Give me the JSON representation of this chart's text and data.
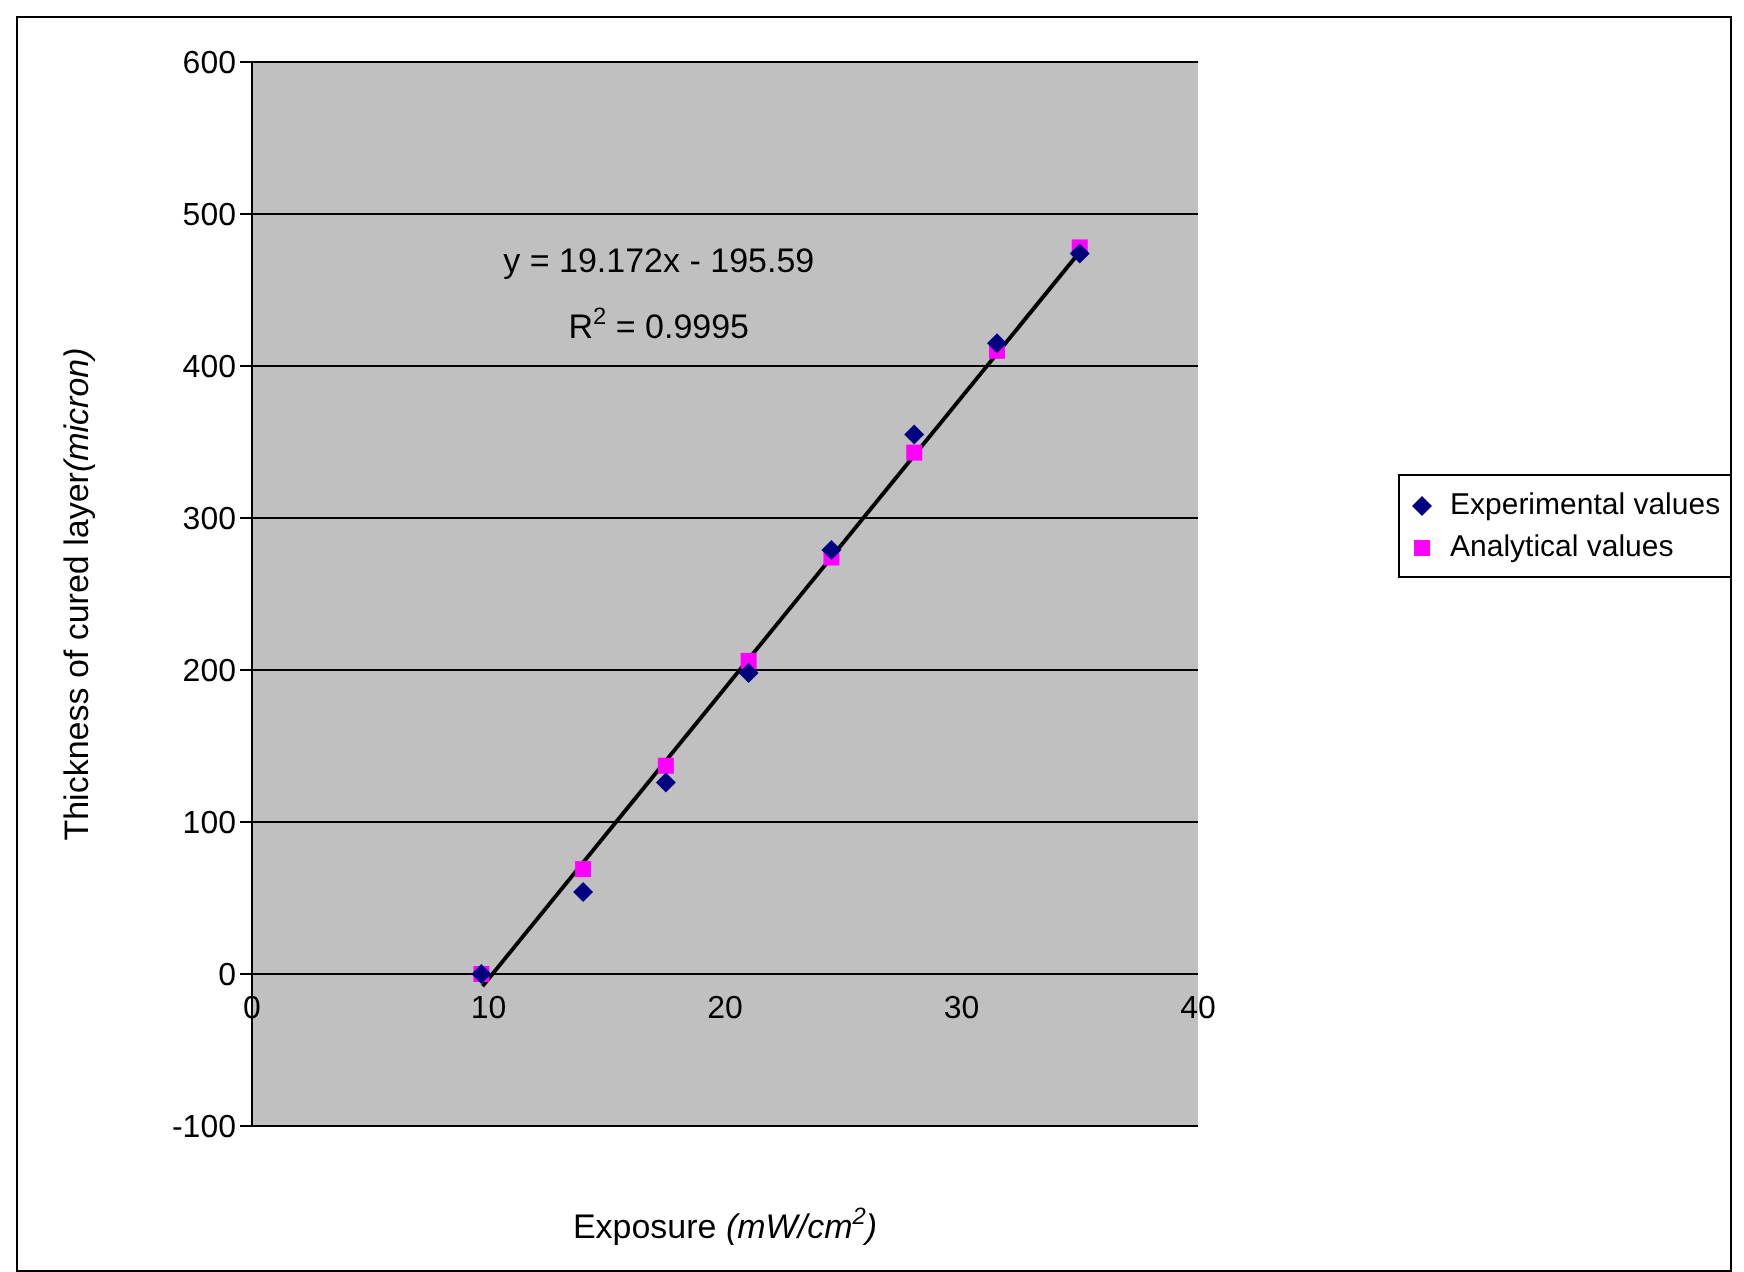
{
  "chart_data": {
    "type": "scatter",
    "xlabel": "Exposure (mW/cm$^{2}$)",
    "ylabel": "Thickness of cured layer(micron)",
    "xlim": [
      0,
      40
    ],
    "xticks": [
      0,
      10,
      20,
      30,
      40
    ],
    "ylim": [
      -100,
      600
    ],
    "yticks": [
      -100,
      0,
      100,
      200,
      300,
      400,
      500,
      600
    ],
    "grid": "y",
    "legend": "right",
    "annotations": [
      "y = 19.172x - 195.59",
      "R$^{2}$ = 0.9995"
    ],
    "series": [
      {
        "name": "Experimental values",
        "color": "#000080",
        "marker": "diamond",
        "x": [
          9.7,
          14,
          17.5,
          21,
          24.5,
          28,
          31.5,
          35
        ],
        "values": [
          0,
          54,
          126,
          198,
          279,
          355,
          415,
          474
        ]
      },
      {
        "name": "Analytical values",
        "color": "#ff00ff",
        "marker": "square",
        "x": [
          9.7,
          14,
          17.5,
          21,
          24.5,
          28,
          31.5,
          35
        ],
        "values": [
          0,
          69,
          137,
          206,
          274,
          343,
          410,
          478
        ]
      },
      {
        "type": "line",
        "color": "#000000",
        "marker": "none",
        "x": [
          9.75,
          35.1
        ],
        "values": [
          -8,
          477
        ]
      }
    ]
  }
}
